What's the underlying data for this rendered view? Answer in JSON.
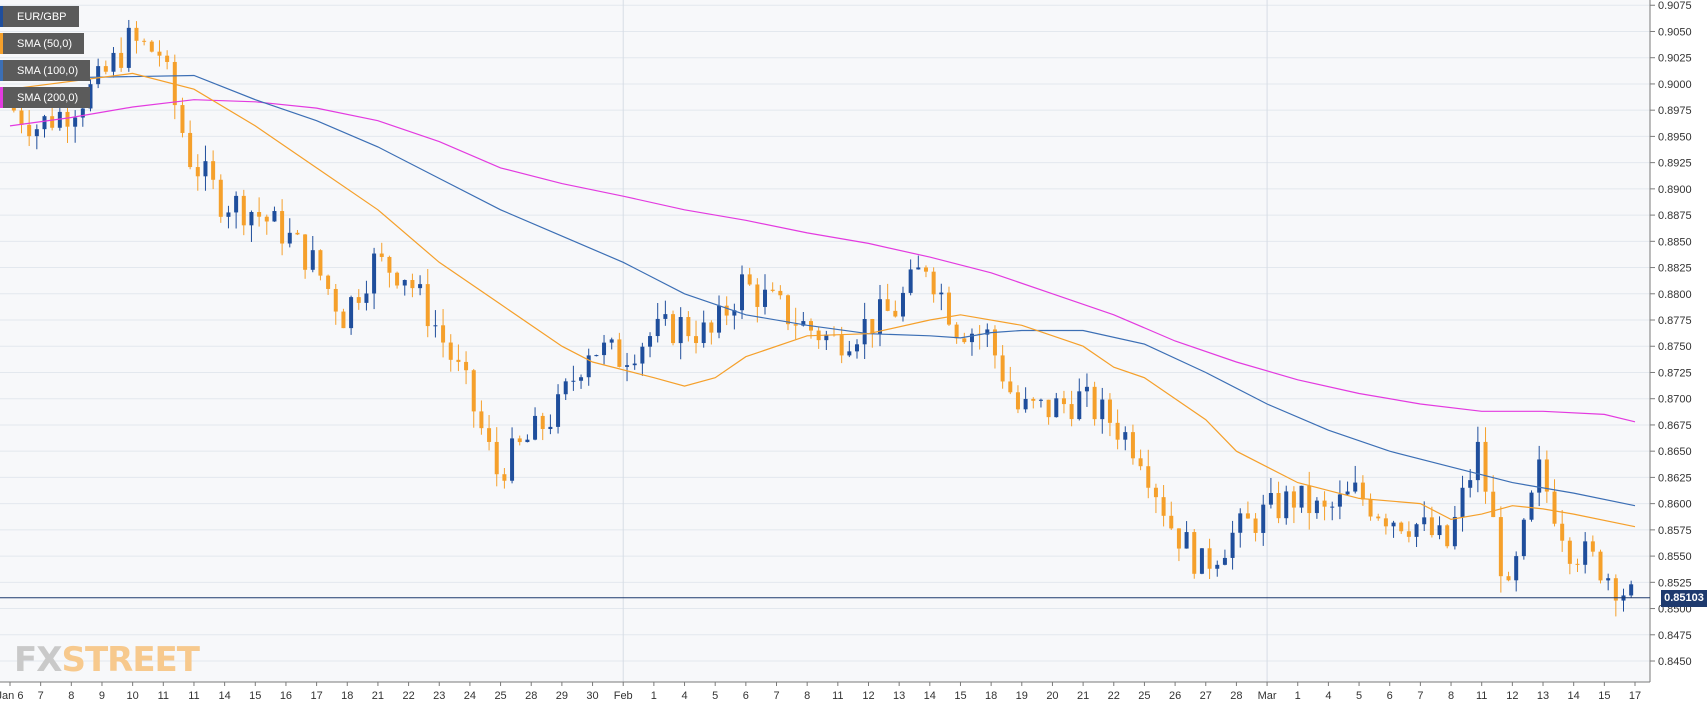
{
  "chart_data": {
    "type": "candlestick",
    "symbol": "EUR/GBP",
    "legend": [
      {
        "label": "EUR/GBP",
        "color": "#1f4e9c"
      },
      {
        "label": "SMA (50,0)",
        "color": "#f5a02b"
      },
      {
        "label": "SMA (100,0)",
        "color": "#3c6fb5"
      },
      {
        "label": "SMA (200,0)",
        "color": "#e33be0"
      }
    ],
    "colors": {
      "bull": "#1f4e9c",
      "bear": "#f5a02b",
      "sma50": "#f5a02b",
      "sma100": "#3c6fb5",
      "sma200": "#e33be0",
      "grid": "#e3e8ee",
      "background": "#f7f8fa"
    },
    "ylim": [
      0.843,
      0.908
    ],
    "y_ticks": [
      "0.9075",
      "0.9050",
      "0.9025",
      "0.9000",
      "0.8975",
      "0.8950",
      "0.8925",
      "0.8900",
      "0.8875",
      "0.8850",
      "0.8825",
      "0.8800",
      "0.8775",
      "0.8750",
      "0.8725",
      "0.8700",
      "0.8675",
      "0.8650",
      "0.8625",
      "0.8600",
      "0.8575",
      "0.8550",
      "0.8525",
      "0.8500",
      "0.8475",
      "0.8450"
    ],
    "x_labels": [
      "Jan 6",
      "7",
      "8",
      "9",
      "10",
      "11",
      "11",
      "14",
      "15",
      "16",
      "17",
      "18",
      "21",
      "22",
      "23",
      "24",
      "25",
      "28",
      "29",
      "30",
      "Feb",
      "1",
      "4",
      "5",
      "6",
      "7",
      "8",
      "11",
      "12",
      "13",
      "14",
      "15",
      "18",
      "19",
      "20",
      "21",
      "22",
      "25",
      "26",
      "27",
      "28",
      "Mar",
      "1",
      "4",
      "5",
      "6",
      "7",
      "8",
      "11",
      "12",
      "13",
      "14",
      "15",
      "17"
    ],
    "current_price": "0.85103",
    "watermark": {
      "part1": "FX",
      "part2": "STREET"
    },
    "key_points": [
      {
        "x": 0,
        "y": 0.898
      },
      {
        "x": 1,
        "y": 0.896
      },
      {
        "x": 2,
        "y": 0.8975
      },
      {
        "x": 3,
        "y": 0.9
      },
      {
        "x": 4,
        "y": 0.904
      },
      {
        "x": 5,
        "y": 0.903
      },
      {
        "x": 6,
        "y": 0.893
      },
      {
        "x": 7,
        "y": 0.889
      },
      {
        "x": 8,
        "y": 0.888
      },
      {
        "x": 9,
        "y": 0.886
      },
      {
        "x": 10,
        "y": 0.883
      },
      {
        "x": 11,
        "y": 0.878
      },
      {
        "x": 12,
        "y": 0.883
      },
      {
        "x": 13,
        "y": 0.882
      },
      {
        "x": 14,
        "y": 0.877
      },
      {
        "x": 15,
        "y": 0.871
      },
      {
        "x": 16,
        "y": 0.863
      },
      {
        "x": 17,
        "y": 0.866
      },
      {
        "x": 18,
        "y": 0.869
      },
      {
        "x": 19,
        "y": 0.875
      },
      {
        "x": 20,
        "y": 0.874
      },
      {
        "x": 21,
        "y": 0.876
      },
      {
        "x": 22,
        "y": 0.877
      },
      {
        "x": 23,
        "y": 0.876
      },
      {
        "x": 24,
        "y": 0.881
      },
      {
        "x": 25,
        "y": 0.879
      },
      {
        "x": 26,
        "y": 0.877
      },
      {
        "x": 27,
        "y": 0.8755
      },
      {
        "x": 28,
        "y": 0.877
      },
      {
        "x": 29,
        "y": 0.8785
      },
      {
        "x": 30,
        "y": 0.883
      },
      {
        "x": 31,
        "y": 0.877
      },
      {
        "x": 32,
        "y": 0.876
      },
      {
        "x": 33,
        "y": 0.869
      },
      {
        "x": 34,
        "y": 0.869
      },
      {
        "x": 35,
        "y": 0.87
      },
      {
        "x": 36,
        "y": 0.868
      },
      {
        "x": 37,
        "y": 0.865
      },
      {
        "x": 38,
        "y": 0.858
      },
      {
        "x": 39,
        "y": 0.854
      },
      {
        "x": 40,
        "y": 0.857
      },
      {
        "x": 41,
        "y": 0.859
      },
      {
        "x": 42,
        "y": 0.8605
      },
      {
        "x": 43,
        "y": 0.859
      },
      {
        "x": 44,
        "y": 0.861
      },
      {
        "x": 45,
        "y": 0.859
      },
      {
        "x": 46,
        "y": 0.858
      },
      {
        "x": 47,
        "y": 0.856
      },
      {
        "x": 48,
        "y": 0.865
      },
      {
        "x": 49,
        "y": 0.851
      },
      {
        "x": 50,
        "y": 0.863
      },
      {
        "x": 51,
        "y": 0.856
      },
      {
        "x": 52,
        "y": 0.854
      },
      {
        "x": 53,
        "y": 0.851
      }
    ],
    "sma50": [
      [
        0,
        0.8995
      ],
      [
        4,
        0.901
      ],
      [
        6,
        0.8995
      ],
      [
        8,
        0.896
      ],
      [
        10,
        0.892
      ],
      [
        12,
        0.888
      ],
      [
        14,
        0.883
      ],
      [
        16,
        0.879
      ],
      [
        18,
        0.875
      ],
      [
        19,
        0.8735
      ],
      [
        21,
        0.872
      ],
      [
        22,
        0.8712
      ],
      [
        23,
        0.872
      ],
      [
        24,
        0.874
      ],
      [
        26,
        0.876
      ],
      [
        28,
        0.8762
      ],
      [
        30,
        0.8775
      ],
      [
        31,
        0.878
      ],
      [
        33,
        0.877
      ],
      [
        35,
        0.875
      ],
      [
        36,
        0.873
      ],
      [
        37,
        0.872
      ],
      [
        39,
        0.868
      ],
      [
        40,
        0.865
      ],
      [
        42,
        0.862
      ],
      [
        44,
        0.8605
      ],
      [
        46,
        0.86
      ],
      [
        47,
        0.8585
      ],
      [
        48,
        0.859
      ],
      [
        49,
        0.8598
      ],
      [
        50,
        0.8595
      ],
      [
        51,
        0.859
      ],
      [
        53,
        0.8578
      ]
    ],
    "sma100": [
      [
        0,
        0.9005
      ],
      [
        6,
        0.9008
      ],
      [
        8,
        0.8985
      ],
      [
        10,
        0.8965
      ],
      [
        12,
        0.894
      ],
      [
        14,
        0.891
      ],
      [
        16,
        0.888
      ],
      [
        18,
        0.8855
      ],
      [
        20,
        0.883
      ],
      [
        22,
        0.88
      ],
      [
        24,
        0.878
      ],
      [
        26,
        0.877
      ],
      [
        28,
        0.8762
      ],
      [
        30,
        0.876
      ],
      [
        31,
        0.8758
      ],
      [
        32,
        0.8763
      ],
      [
        33,
        0.8765
      ],
      [
        35,
        0.8765
      ],
      [
        37,
        0.8752
      ],
      [
        39,
        0.8725
      ],
      [
        41,
        0.8695
      ],
      [
        43,
        0.867
      ],
      [
        45,
        0.865
      ],
      [
        47,
        0.8635
      ],
      [
        49,
        0.862
      ],
      [
        51,
        0.861
      ],
      [
        53,
        0.8598
      ]
    ],
    "sma200": [
      [
        0,
        0.896
      ],
      [
        2,
        0.8968
      ],
      [
        4,
        0.8978
      ],
      [
        6,
        0.8985
      ],
      [
        8,
        0.8983
      ],
      [
        10,
        0.8977
      ],
      [
        12,
        0.8965
      ],
      [
        14,
        0.8945
      ],
      [
        16,
        0.892
      ],
      [
        18,
        0.8905
      ],
      [
        20,
        0.8893
      ],
      [
        22,
        0.888
      ],
      [
        24,
        0.887
      ],
      [
        26,
        0.8858
      ],
      [
        28,
        0.8848
      ],
      [
        30,
        0.8835
      ],
      [
        32,
        0.882
      ],
      [
        34,
        0.88
      ],
      [
        36,
        0.878
      ],
      [
        38,
        0.8755
      ],
      [
        40,
        0.8735
      ],
      [
        42,
        0.8718
      ],
      [
        44,
        0.8705
      ],
      [
        46,
        0.8695
      ],
      [
        48,
        0.8688
      ],
      [
        50,
        0.8688
      ],
      [
        52,
        0.8685
      ],
      [
        53,
        0.8678
      ]
    ]
  }
}
